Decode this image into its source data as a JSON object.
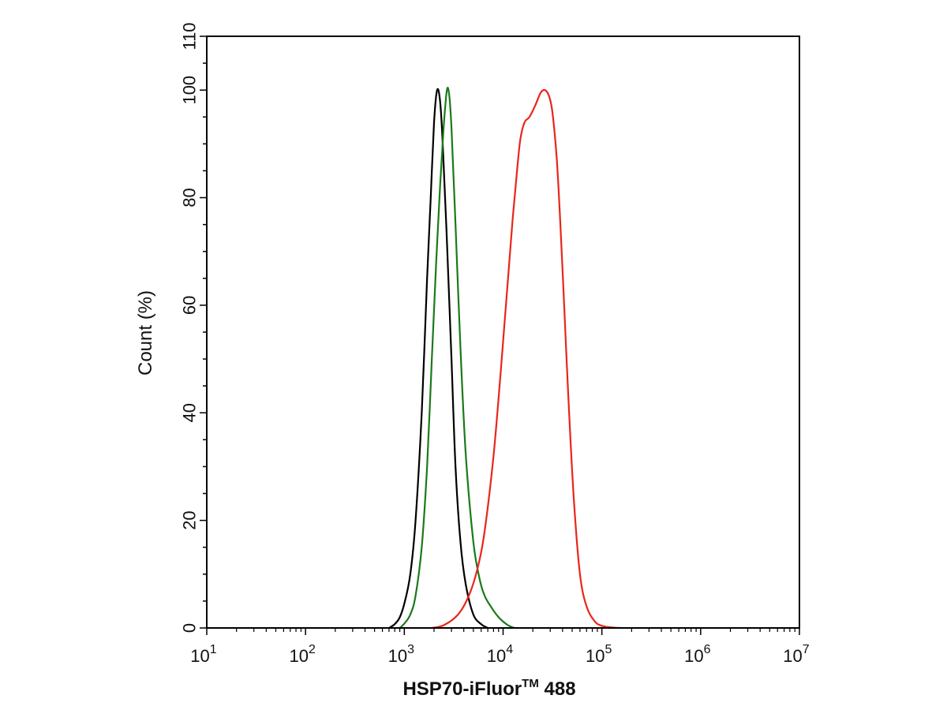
{
  "chart_data": {
    "type": "line",
    "title": "",
    "xlabel": "HSP70-iFluor",
    "xlabel_tm": "TM",
    "xlabel_tail": " 488",
    "ylabel": "Count  (%)",
    "xscale": "log",
    "xlim": [
      10,
      10000000
    ],
    "ylim": [
      0,
      110
    ],
    "grid": false,
    "legend": "none",
    "x_ticks": [
      {
        "value": 10,
        "base": "10",
        "exp": "1"
      },
      {
        "value": 100,
        "base": "10",
        "exp": "2"
      },
      {
        "value": 1000,
        "base": "10",
        "exp": "3"
      },
      {
        "value": 10000,
        "base": "10",
        "exp": "4"
      },
      {
        "value": 100000,
        "base": "10",
        "exp": "5"
      },
      {
        "value": 1000000,
        "base": "10",
        "exp": "6"
      },
      {
        "value": 10000000,
        "base": "10",
        "exp": "7"
      }
    ],
    "y_ticks": [
      0,
      20,
      40,
      60,
      80,
      100,
      110
    ],
    "series": [
      {
        "color": "#000000",
        "x": [
          700,
          800,
          900,
          1000,
          1150,
          1300,
          1500,
          1700,
          1850,
          2000,
          2150,
          2300,
          2450,
          2700,
          3000,
          3300,
          3700,
          4200,
          5000,
          6000,
          7000
        ],
        "y": [
          0,
          0.7,
          2,
          4.5,
          10,
          20,
          40,
          65,
          80,
          94,
          100,
          98,
          90,
          72,
          50,
          30,
          16,
          8,
          2.5,
          0.7,
          0
        ]
      },
      {
        "color": "#1a7a1a",
        "x": [
          900,
          1000,
          1150,
          1300,
          1500,
          1700,
          1900,
          2100,
          2300,
          2500,
          2700,
          2850,
          3000,
          3300,
          3700,
          4200,
          5000,
          5800,
          6500,
          7500,
          9000,
          11000,
          13000
        ],
        "y": [
          0,
          0.8,
          2.5,
          6,
          15,
          30,
          50,
          68,
          82,
          93,
          100,
          99,
          93,
          75,
          52,
          32,
          16,
          9,
          6,
          4,
          2,
          0.6,
          0
        ]
      },
      {
        "color": "#e8261a",
        "x": [
          1900,
          2500,
          3500,
          4500,
          5500,
          6500,
          8000,
          9500,
          11000,
          12500,
          14000,
          15000,
          16500,
          18500,
          21000,
          24000,
          26500,
          29000,
          31500,
          35000,
          38000,
          42000,
          46000,
          52000,
          60000,
          70000,
          85000,
          100000,
          125000,
          160000
        ],
        "y": [
          0,
          0.5,
          2.5,
          6,
          11,
          18,
          32,
          48,
          63,
          76,
          86,
          91,
          94,
          95,
          97,
          99.5,
          100,
          99,
          96,
          87,
          75,
          58,
          42,
          24,
          10,
          4,
          1.2,
          0.4,
          0.1,
          0
        ]
      }
    ]
  }
}
